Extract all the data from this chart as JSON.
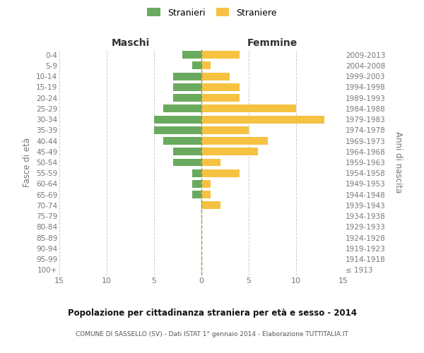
{
  "age_groups": [
    "100+",
    "95-99",
    "90-94",
    "85-89",
    "80-84",
    "75-79",
    "70-74",
    "65-69",
    "60-64",
    "55-59",
    "50-54",
    "45-49",
    "40-44",
    "35-39",
    "30-34",
    "25-29",
    "20-24",
    "15-19",
    "10-14",
    "5-9",
    "0-4"
  ],
  "birth_years": [
    "≤ 1913",
    "1914-1918",
    "1919-1923",
    "1924-1928",
    "1929-1933",
    "1934-1938",
    "1939-1943",
    "1944-1948",
    "1949-1953",
    "1954-1958",
    "1959-1963",
    "1964-1968",
    "1969-1973",
    "1974-1978",
    "1979-1983",
    "1984-1988",
    "1989-1993",
    "1994-1998",
    "1999-2003",
    "2004-2008",
    "2009-2013"
  ],
  "maschi": [
    0,
    0,
    0,
    0,
    0,
    0,
    0,
    1,
    1,
    1,
    3,
    3,
    4,
    5,
    5,
    4,
    3,
    3,
    3,
    1,
    2
  ],
  "femmine": [
    0,
    0,
    0,
    0,
    0,
    0,
    2,
    1,
    1,
    4,
    2,
    6,
    7,
    5,
    13,
    10,
    4,
    4,
    3,
    1,
    4
  ],
  "maschi_color": "#6aaa5e",
  "femmine_color": "#f5c242",
  "title": "Popolazione per cittadinanza straniera per età e sesso - 2014",
  "subtitle": "COMUNE DI SASSELLO (SV) - Dati ISTAT 1° gennaio 2014 - Elaborazione TUTTITALIA.IT",
  "xlabel_left": "Maschi",
  "xlabel_right": "Femmine",
  "ylabel_left": "Fasce di età",
  "ylabel_right": "Anni di nascita",
  "legend_maschi": "Stranieri",
  "legend_femmine": "Straniere",
  "xlim": 15,
  "background_color": "#ffffff",
  "grid_color": "#cccccc",
  "axis_label_color": "#777777",
  "title_color": "#111111",
  "subtitle_color": "#555555",
  "center_line_color": "#999944"
}
